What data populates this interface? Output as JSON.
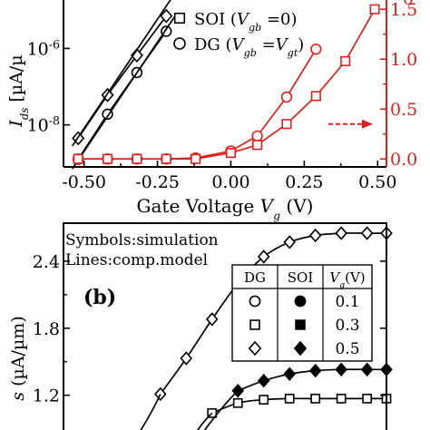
{
  "chart_data": [
    {
      "type": "line",
      "panel": "a",
      "xlabel": "Gate Voltage V_g (V)",
      "xlabel_parts": [
        "Gate Voltage ",
        "V",
        "g",
        " (V)"
      ],
      "x_ticks": [
        "-0.50",
        "-0.25",
        "0.00",
        "0.25",
        "0.50"
      ],
      "xlim": [
        -0.57,
        0.53
      ],
      "y_left": {
        "label_parts": [
          "I",
          "ds",
          " [µA/µ"
        ],
        "scale": "log",
        "ylim_log10": [
          -9.1,
          -4.4
        ],
        "ticks": [
          {
            "base": "10",
            "exp": "-6",
            "value": -6
          },
          {
            "base": "10",
            "exp": "-8",
            "value": -8
          }
        ],
        "top_tick_partial": "-6"
      },
      "y_right": {
        "scale": "linear",
        "ylim": [
          -0.08,
          1.72
        ],
        "ticks": [
          "0.0",
          "0.5",
          "1.0",
          "1.5"
        ],
        "top_tick_partial": "0",
        "color": "#e0201c"
      },
      "legend": {
        "placement": "top-center",
        "entries": [
          {
            "marker": "open-square",
            "parts": [
              "SOI (",
              "V",
              "gb",
              " =0)"
            ]
          },
          {
            "marker": "open-circle",
            "parts": [
              "DG (",
              "V",
              "gb",
              " =",
              "V",
              "gt",
              ")"
            ]
          }
        ]
      },
      "arrow_direction": "right",
      "arrow_color": "#e0201c",
      "series": [
        {
          "axis": "left-log",
          "color": "#000000",
          "marker": "open-diamond",
          "points": [
            [
              -0.52,
              -8.35
            ],
            [
              -0.42,
              -7.22
            ],
            [
              -0.32,
              -6.18
            ],
            [
              -0.22,
              -5.15
            ]
          ]
        },
        {
          "axis": "left-log",
          "color": "#000000",
          "marker": "open-circle",
          "points": [
            [
              -0.52,
              -8.9
            ],
            [
              -0.42,
              -7.72
            ],
            [
              -0.32,
              -6.63
            ],
            [
              -0.22,
              -5.55
            ]
          ]
        },
        {
          "axis": "left-log",
          "color": "#000000",
          "marker": "none",
          "points": [
            [
              -0.54,
              -8.55
            ],
            [
              -0.19,
              -4.55
            ]
          ]
        },
        {
          "axis": "left-log",
          "color": "#000000",
          "marker": "none",
          "points": [
            [
              -0.54,
              -9.15
            ],
            [
              -0.19,
              -5.15
            ]
          ]
        },
        {
          "axis": "right-linear",
          "color": "#e0201c",
          "marker": "open-circle",
          "points": [
            [
              -0.52,
              0.0
            ],
            [
              -0.42,
              0.0
            ],
            [
              -0.32,
              0.0
            ],
            [
              -0.22,
              0.0
            ],
            [
              -0.12,
              0.01
            ],
            [
              0.0,
              0.08
            ],
            [
              0.09,
              0.23
            ],
            [
              0.19,
              0.62
            ],
            [
              0.29,
              1.1
            ]
          ]
        },
        {
          "axis": "right-linear",
          "color": "#e0201c",
          "marker": "open-square",
          "points": [
            [
              -0.52,
              0.0
            ],
            [
              -0.42,
              0.0
            ],
            [
              -0.32,
              0.0
            ],
            [
              -0.22,
              0.0
            ],
            [
              -0.12,
              0.0
            ],
            [
              0.0,
              0.06
            ],
            [
              0.09,
              0.14
            ],
            [
              0.19,
              0.35
            ],
            [
              0.29,
              0.63
            ],
            [
              0.39,
              0.98
            ],
            [
              0.49,
              1.5
            ]
          ]
        }
      ]
    },
    {
      "type": "line",
      "panel": "b",
      "panel_label": "(b)",
      "annotation_lines": [
        "Symbols:simulation",
        "Lines:comp.model"
      ],
      "ylabel_parts": [
        "s",
        " (µA/µm)"
      ],
      "y_ticks": [
        "2.4",
        "1.8",
        "1.2"
      ],
      "ylim": [
        0.84,
        2.74
      ],
      "xlim": [
        0.0,
        1.0
      ],
      "legend_table": {
        "placement": "top-right",
        "header": [
          "DG",
          "SOI"
        ],
        "header_vg_parts": [
          "V",
          "g",
          "(V)"
        ],
        "rows": [
          {
            "dg_marker": "open-circle",
            "soi_marker": "filled-circle",
            "vg": "0.1"
          },
          {
            "dg_marker": "open-square",
            "soi_marker": "filled-square",
            "vg": "0.3"
          },
          {
            "dg_marker": "open-diamond",
            "soi_marker": "filled-diamond",
            "vg": "0.5"
          }
        ]
      },
      "series": [
        {
          "color": "#000000",
          "marker": "open-diamond",
          "points": [
            [
              0.3,
              1.21
            ],
            [
              0.38,
              1.53
            ],
            [
              0.46,
              1.88
            ],
            [
              0.54,
              2.2
            ],
            [
              0.62,
              2.44
            ],
            [
              0.7,
              2.57
            ],
            [
              0.78,
              2.63
            ],
            [
              0.86,
              2.65
            ],
            [
              0.94,
              2.65
            ],
            [
              1.0,
              2.65
            ]
          ]
        },
        {
          "color": "#000000",
          "marker": "filled-diamond",
          "points": [
            [
              0.54,
              1.24
            ],
            [
              0.62,
              1.33
            ],
            [
              0.7,
              1.39
            ],
            [
              0.78,
              1.42
            ],
            [
              0.86,
              1.43
            ],
            [
              0.94,
              1.43
            ],
            [
              1.0,
              1.43
            ]
          ]
        },
        {
          "color": "#000000",
          "marker": "open-square",
          "points": [
            [
              0.46,
              1.04
            ],
            [
              0.54,
              1.13
            ],
            [
              0.62,
              1.16
            ],
            [
              0.7,
              1.17
            ],
            [
              0.78,
              1.17
            ],
            [
              0.86,
              1.17
            ],
            [
              0.94,
              1.17
            ],
            [
              1.0,
              1.17
            ]
          ]
        }
      ]
    }
  ]
}
